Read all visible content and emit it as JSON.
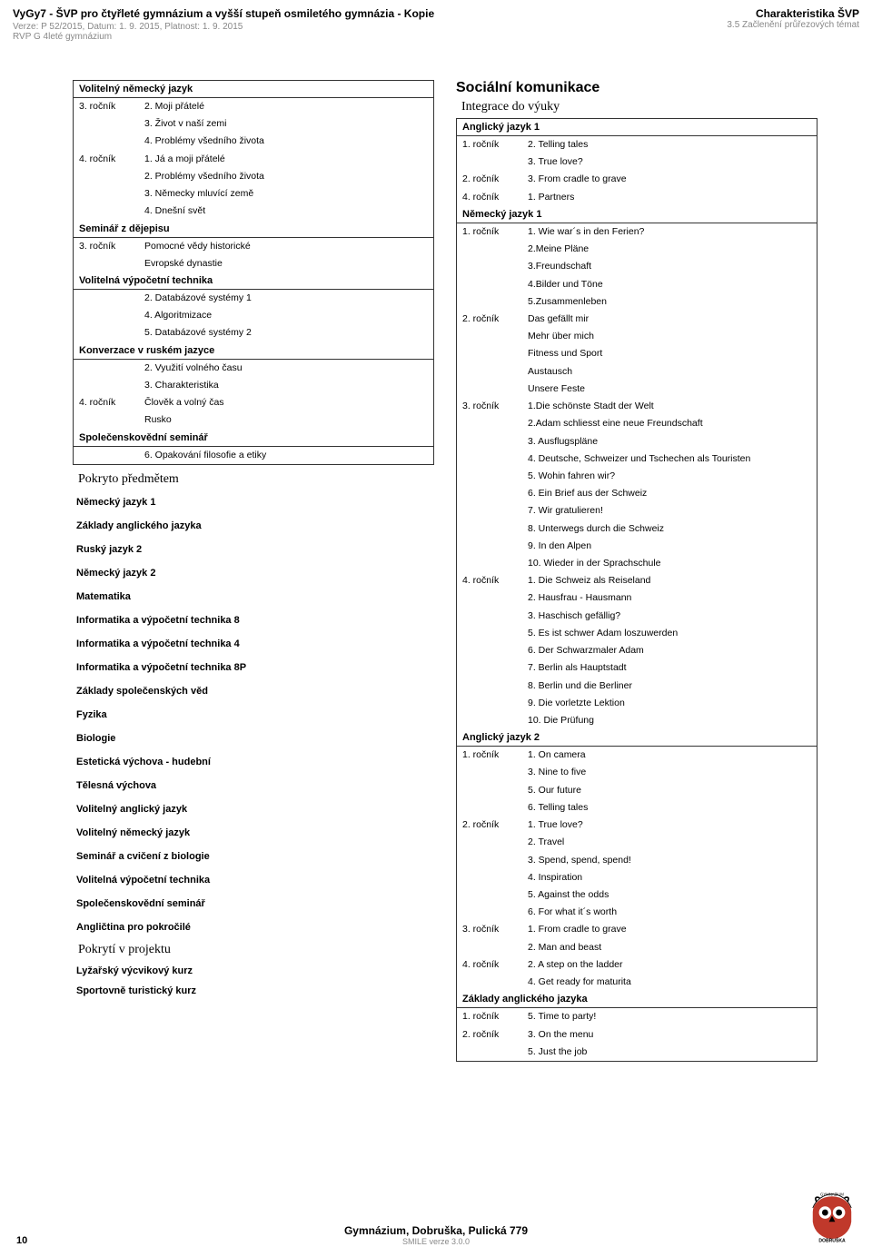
{
  "header": {
    "title": "VyGy7 - ŠVP pro čtyřleté gymnázium a vyšší stupeň osmiletého gymnázia  - Kopie",
    "meta_line": "Verze: P 52/2015, Datum: 1. 9. 2015, Platnost: 1. 9. 2015",
    "sub_line": "RVP G 4leté gymnázium",
    "right_title": "Charakteristika ŠVP",
    "right_sub": "3.5 Začlenění průřezových témat"
  },
  "left": {
    "sections": [
      {
        "title": "Volitelný německý jazyk",
        "rows": [
          [
            "3. ročník",
            "2. Moji přátelé"
          ],
          [
            "",
            "3. Život v naší zemi"
          ],
          [
            "",
            "4. Problémy všedního života"
          ],
          [
            "4. ročník",
            "1. Já a moji přátelé"
          ],
          [
            "",
            "2. Problémy všedního života"
          ],
          [
            "",
            "3. Německy mluvící země"
          ],
          [
            "",
            "4. Dnešní svět"
          ]
        ]
      },
      {
        "title": "Seminář z dějepisu",
        "rows": [
          [
            "3. ročník",
            "Pomocné vědy historické"
          ],
          [
            "",
            "Evropské dynastie"
          ]
        ]
      },
      {
        "title": "Volitelná výpočetní technika",
        "rows": [
          [
            "",
            "2. Databázové systémy 1"
          ],
          [
            "",
            "4. Algoritmizace"
          ],
          [
            "",
            "5. Databázové systémy 2"
          ]
        ]
      },
      {
        "title": "Konverzace v ruském jazyce",
        "rows": [
          [
            "",
            "2. Využití volného času"
          ],
          [
            "",
            "3. Charakteristika"
          ],
          [
            "4. ročník",
            "Člověk a volný čas"
          ],
          [
            "",
            "Rusko"
          ]
        ]
      },
      {
        "title": "Společenskovědní seminář",
        "rows": [
          [
            "",
            "6. Opakování filosofie a etiky"
          ]
        ]
      }
    ],
    "covered_title": "Pokryto předmětem",
    "subjects": [
      "Německý jazyk 1",
      "Základy anglického jazyka",
      "Ruský jazyk 2",
      "Německý jazyk 2",
      "Matematika",
      "Informatika a výpočetní technika 8",
      "Informatika a výpočetní technika 4",
      "Informatika a výpočetní technika 8P",
      "Základy společenských věd",
      "Fyzika",
      "Biologie",
      "Estetická výchova - hudební",
      "Tělesná výchova",
      "Volitelný anglický jazyk",
      "Volitelný německý jazyk",
      "Seminář a cvičení z biologie",
      "Volitelná výpočetní technika",
      "Společenskovědní seminář",
      "Angličtina pro pokročilé"
    ],
    "project_title": "Pokrytí v projektu",
    "projects": [
      "Lyžařský výcvikový kurz",
      "Sportovně turistický kurz"
    ]
  },
  "right": {
    "main_title": "Sociální komunikace",
    "sub_title": "Integrace do výuky",
    "sections": [
      {
        "title": "Anglický jazyk 1",
        "rows": [
          [
            "1. ročník",
            "2. Telling tales"
          ],
          [
            "",
            "3. True love?"
          ],
          [
            "2. ročník",
            "3. From cradle to grave"
          ],
          [
            "4. ročník",
            "1. Partners"
          ]
        ]
      },
      {
        "title": "Německý jazyk 1",
        "rows": [
          [
            "1. ročník",
            "1. Wie war´s in den Ferien?"
          ],
          [
            "",
            "2.Meine Pläne"
          ],
          [
            "",
            "3.Freundschaft"
          ],
          [
            "",
            "4.Bilder und Töne"
          ],
          [
            "",
            "5.Zusammenleben"
          ],
          [
            "2. ročník",
            "Das gefällt mir"
          ],
          [
            "",
            "Mehr über mich"
          ],
          [
            "",
            "Fitness und Sport"
          ],
          [
            "",
            "Austausch"
          ],
          [
            "",
            "Unsere Feste"
          ],
          [
            "3. ročník",
            "1.Die schönste Stadt der Welt"
          ],
          [
            "",
            "2.Adam schliesst eine neue Freundschaft"
          ],
          [
            "",
            "3. Ausflugspläne"
          ],
          [
            "",
            "4. Deutsche, Schweizer und Tschechen als Touristen"
          ],
          [
            "",
            "5. Wohin fahren wir?"
          ],
          [
            "",
            "6. Ein Brief aus der Schweiz"
          ],
          [
            "",
            "7. Wir gratulieren!"
          ],
          [
            "",
            "8. Unterwegs durch die Schweiz"
          ],
          [
            "",
            "9. In den Alpen"
          ],
          [
            "",
            "10. Wieder in der Sprachschule"
          ],
          [
            "4. ročník",
            "1. Die Schweiz als Reiseland"
          ],
          [
            "",
            "2. Hausfrau - Hausmann"
          ],
          [
            "",
            "3. Haschisch gefällig?"
          ],
          [
            "",
            "5. Es ist schwer Adam loszuwerden"
          ],
          [
            "",
            "6. Der Schwarzmaler Adam"
          ],
          [
            "",
            "7. Berlin als Hauptstadt"
          ],
          [
            "",
            "8. Berlin und die Berliner"
          ],
          [
            "",
            "9. Die vorletzte Lektion"
          ],
          [
            "",
            "10. Die Prüfung"
          ]
        ]
      },
      {
        "title": "Anglický jazyk 2",
        "rows": [
          [
            "1. ročník",
            "1. On camera"
          ],
          [
            "",
            "3. Nine to five"
          ],
          [
            "",
            "5. Our future"
          ],
          [
            "",
            "6. Telling tales"
          ],
          [
            "2. ročník",
            "1. True love?"
          ],
          [
            "",
            "2. Travel"
          ],
          [
            "",
            "3. Spend, spend, spend!"
          ],
          [
            "",
            "4. Inspiration"
          ],
          [
            "",
            "5. Against the odds"
          ],
          [
            "",
            "6. For what it´s worth"
          ],
          [
            "3. ročník",
            "1. From cradle to grave"
          ],
          [
            "",
            "2. Man and beast"
          ],
          [
            "4. ročník",
            "2. A step on the ladder"
          ],
          [
            "",
            "4. Get ready for maturita"
          ]
        ]
      },
      {
        "title": "Základy anglického jazyka",
        "rows": [
          [
            "1. ročník",
            "5. Time to party!"
          ],
          [
            "2. ročník",
            "3. On the menu"
          ],
          [
            "",
            "5. Just the job"
          ]
        ]
      }
    ]
  },
  "footer": {
    "page": "10",
    "school": "Gymnázium, Dobruška, Pulická 779",
    "version": "SMILE verze 3.0.0"
  },
  "style": {
    "page_bg": "#ffffff",
    "text_color": "#000000",
    "muted_color": "#888888",
    "border_color": "#333333",
    "title_fontsize": 12,
    "body_fontsize": 11,
    "row_fontsize": 10.5,
    "h1_fontsize": 16,
    "h2_fontsize": 14,
    "logo_colors": {
      "primary": "#c0392b",
      "secondary": "#000000"
    }
  }
}
